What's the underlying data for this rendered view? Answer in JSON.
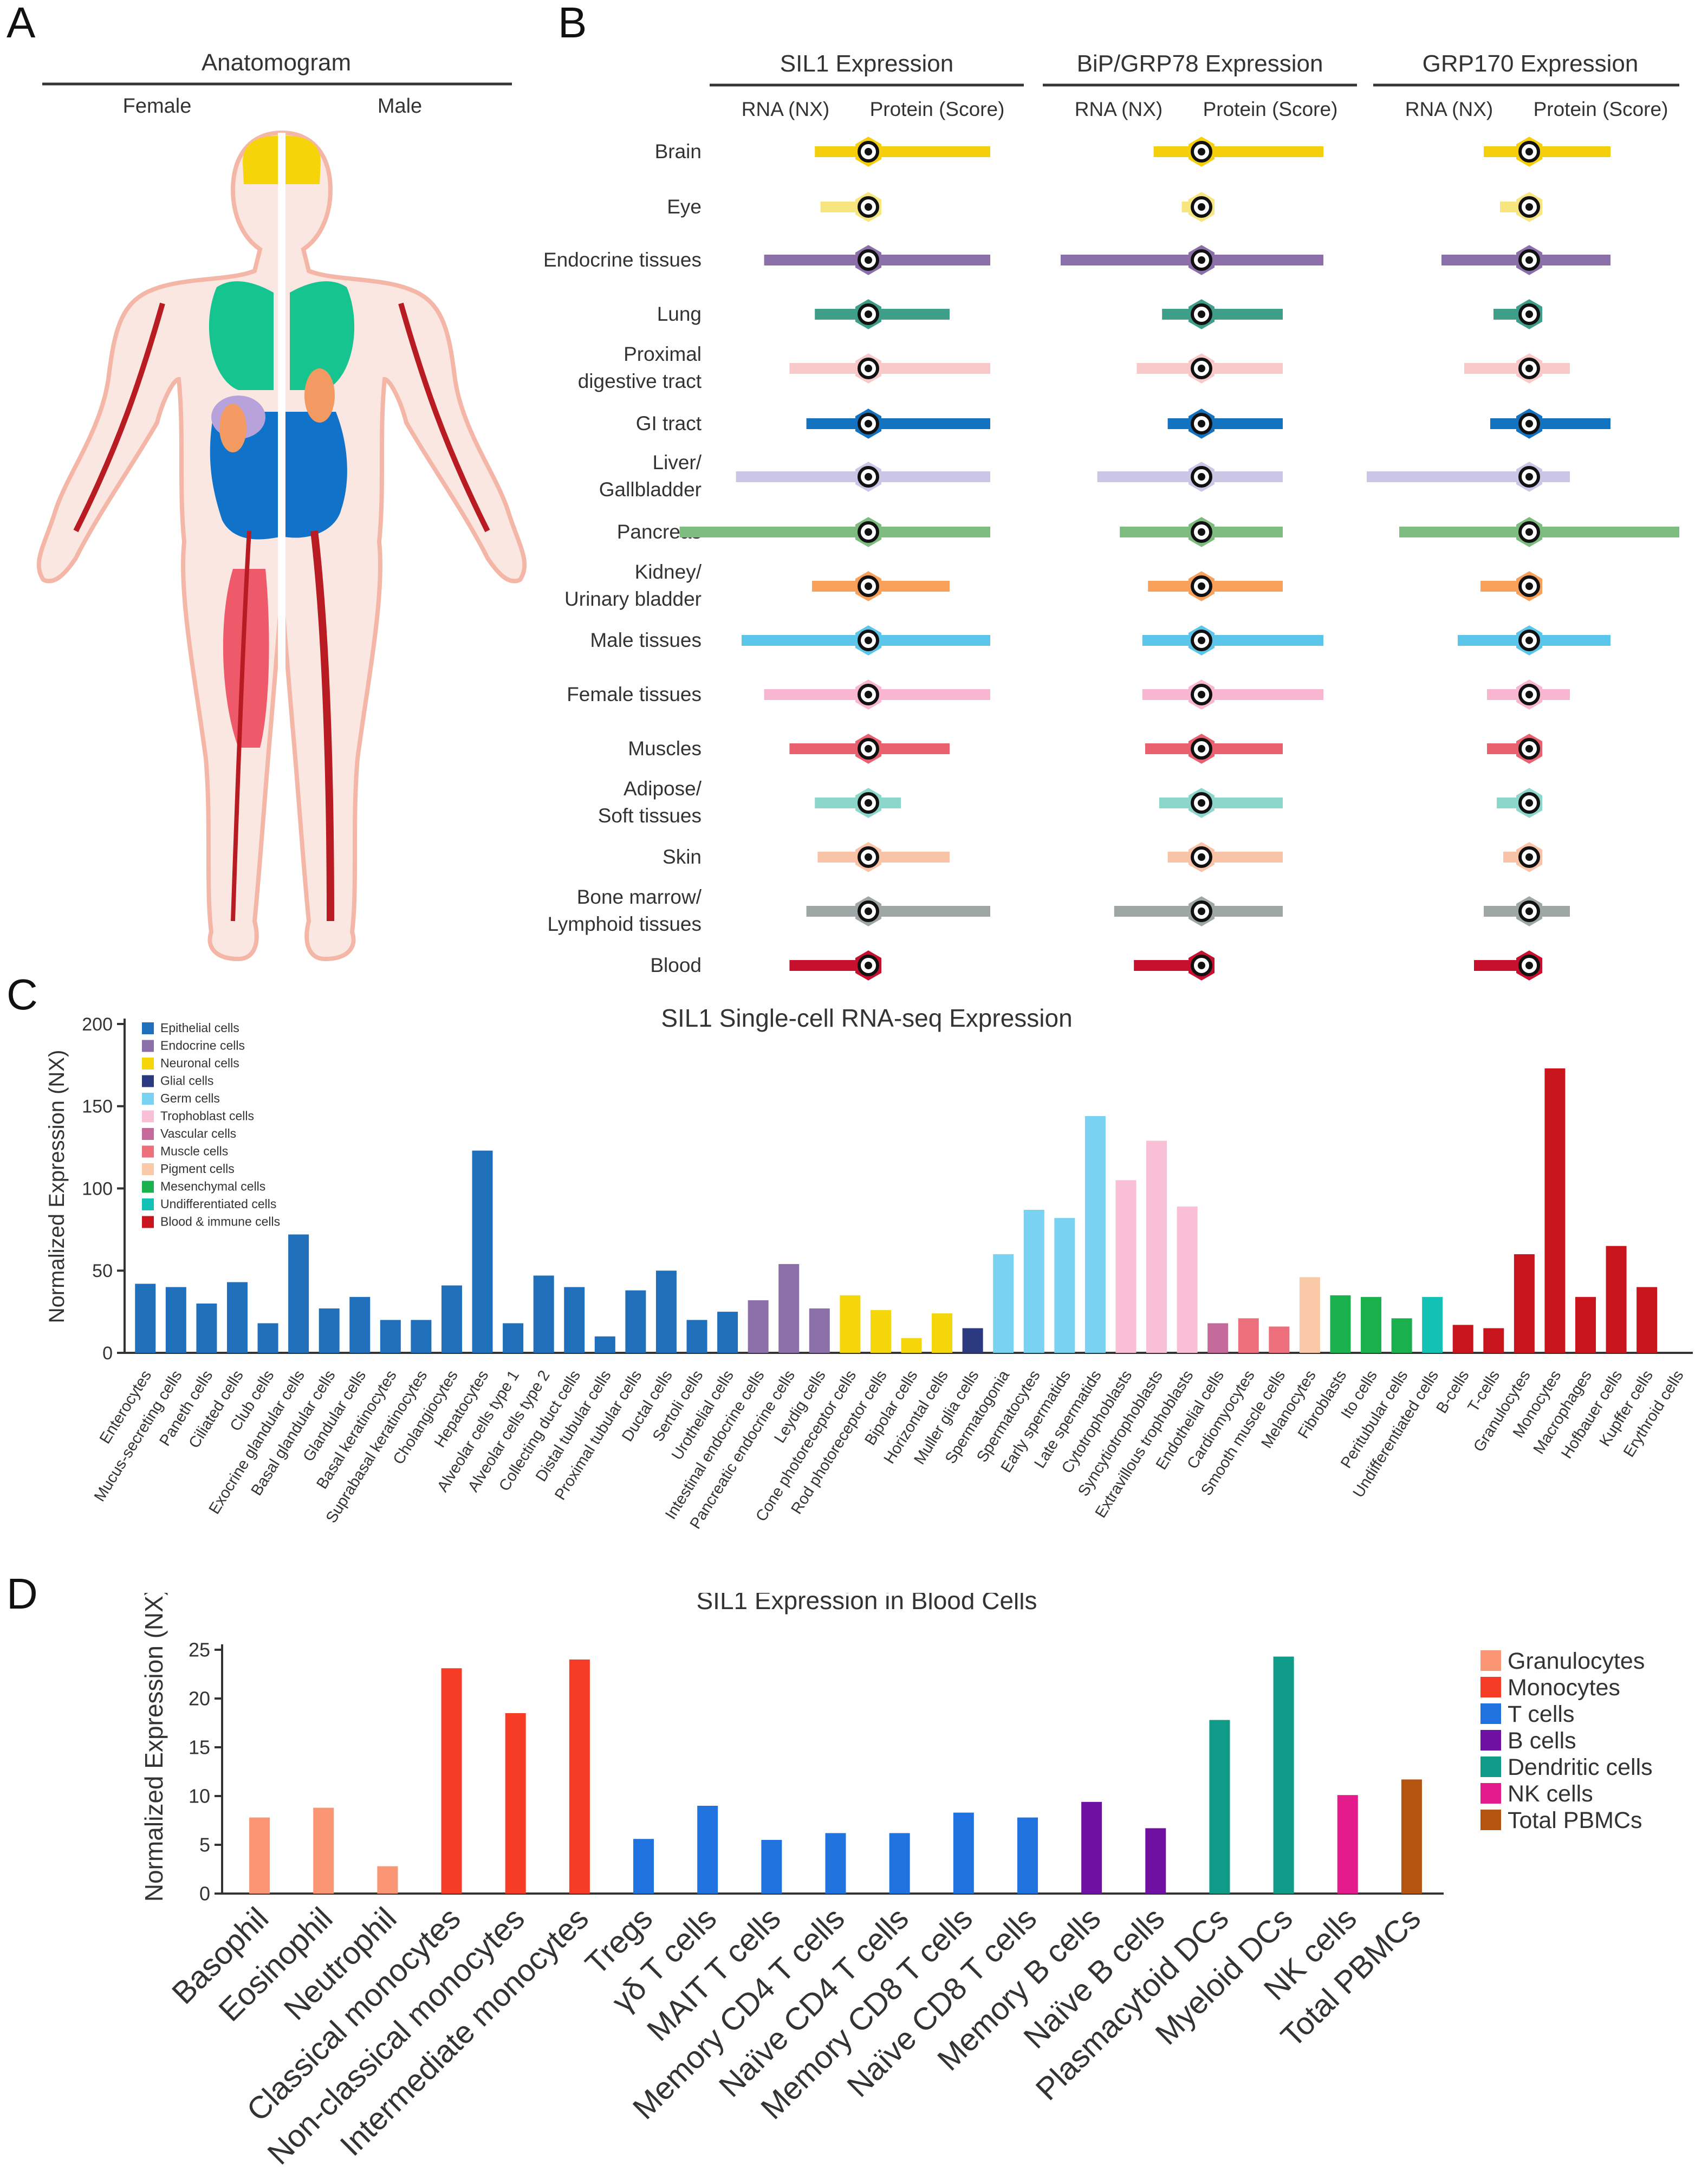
{
  "panels": {
    "a": "A",
    "b": "B",
    "c": "C",
    "d": "D"
  },
  "anatomogram": {
    "title": "Anatomogram",
    "female": "Female",
    "male": "Male"
  },
  "chart_data": [
    {
      "type": "table",
      "id": "tissue-expression",
      "groups": [
        {
          "title": "SIL1 Expression",
          "rna_label": "RNA (NX)",
          "protein_label": "Protein (Score)"
        },
        {
          "title": "BiP/GRP78 Expression",
          "rna_label": "RNA (NX)",
          "protein_label": "Protein (Score)"
        },
        {
          "title": "GRP170 Expression",
          "rna_label": "RNA (NX)",
          "protein_label": "Protein (Score)"
        }
      ],
      "tissues": [
        {
          "name": "Brain",
          "color": "#f5cf0b",
          "rna": [
            0.19,
            0.17,
            0.14
          ],
          "protein": [
            0.75,
            0.75,
            0.5
          ]
        },
        {
          "name": "Eye",
          "color": "#f7e680",
          "rna": [
            0.17,
            0.07,
            0.09
          ],
          "protein": [
            0.0,
            0.0,
            0.0
          ]
        },
        {
          "name": "Endocrine tissues",
          "color": "#8a6fa8",
          "rna": [
            0.37,
            0.5,
            0.27
          ],
          "protein": [
            0.75,
            0.75,
            0.5
          ]
        },
        {
          "name": "Lung",
          "color": "#3f9e8a",
          "rna": [
            0.19,
            0.14,
            0.11
          ],
          "protein": [
            0.5,
            0.5,
            0.0
          ]
        },
        {
          "name": "Proximal\ndigestive tract",
          "color": "#f9c8c8",
          "rna": [
            0.28,
            0.23,
            0.2
          ],
          "protein": [
            0.75,
            0.5,
            0.25
          ]
        },
        {
          "name": "GI tract",
          "color": "#1373c0",
          "rna": [
            0.22,
            0.12,
            0.12
          ],
          "protein": [
            0.75,
            0.5,
            0.5
          ]
        },
        {
          "name": "Liver/\nGallbladder",
          "color": "#cbc5e6",
          "rna": [
            0.47,
            0.37,
            0.5
          ],
          "protein": [
            0.75,
            0.5,
            0.25
          ]
        },
        {
          "name": "Pancreas",
          "color": "#7ebb7e",
          "rna": [
            0.67,
            0.29,
            0.4
          ],
          "protein": [
            0.75,
            0.5,
            1.0
          ]
        },
        {
          "name": "Kidney/\nUrinary bladder",
          "color": "#f9a15a",
          "rna": [
            0.2,
            0.19,
            0.15
          ],
          "protein": [
            0.5,
            0.5,
            0.0
          ]
        },
        {
          "name": "Male tissues",
          "color": "#5bc6ea",
          "rna": [
            0.45,
            0.21,
            0.22
          ],
          "protein": [
            0.75,
            0.75,
            0.5
          ]
        },
        {
          "name": "Female tissues",
          "color": "#f9b6d1",
          "rna": [
            0.37,
            0.21,
            0.13
          ],
          "protein": [
            0.75,
            0.75,
            0.25
          ]
        },
        {
          "name": "Muscles",
          "color": "#e9616f",
          "rna": [
            0.28,
            0.2,
            0.13
          ],
          "protein": [
            0.5,
            0.5,
            0.0
          ]
        },
        {
          "name": "Adipose/\nSoft tissues",
          "color": "#8dd6cb",
          "rna": [
            0.19,
            0.15,
            0.1
          ],
          "protein": [
            0.2,
            0.5,
            0.0
          ]
        },
        {
          "name": "Skin",
          "color": "#f9c3a8",
          "rna": [
            0.18,
            0.12,
            0.08
          ],
          "protein": [
            0.5,
            0.5,
            0.0
          ]
        },
        {
          "name": "Bone marrow/\nLymphoid tissues",
          "color": "#9ea6a6",
          "rna": [
            0.22,
            0.31,
            0.14
          ],
          "protein": [
            0.75,
            0.5,
            0.25
          ]
        },
        {
          "name": "Blood",
          "color": "#c8102e",
          "rna": [
            0.28,
            0.24,
            0.17
          ],
          "protein": [
            0.0,
            0.0,
            0.0
          ]
        }
      ]
    },
    {
      "type": "bar",
      "id": "single-cell",
      "title": "SIL1 Single-cell RNA-seq Expression",
      "ylabel": "Normalized Expression (NX)",
      "ylim": [
        0,
        200
      ],
      "yticks": [
        0,
        50,
        100,
        150,
        200
      ],
      "legend": [
        {
          "label": "Epithelial cells",
          "color": "#1f6fbb"
        },
        {
          "label": "Endocrine cells",
          "color": "#8a6fa8"
        },
        {
          "label": "Neuronal cells",
          "color": "#f5d60b"
        },
        {
          "label": "Glial cells",
          "color": "#2b3a80"
        },
        {
          "label": "Germ cells",
          "color": "#79d2f2"
        },
        {
          "label": "Trophoblast cells",
          "color": "#f9bfd6"
        },
        {
          "label": "Vascular cells",
          "color": "#c46a9a"
        },
        {
          "label": "Muscle cells",
          "color": "#ee6f7c"
        },
        {
          "label": "Pigment cells",
          "color": "#f9c9a8"
        },
        {
          "label": "Mesenchymal cells",
          "color": "#1bb04e"
        },
        {
          "label": "Undifferentiated cells",
          "color": "#14c1b5"
        },
        {
          "label": "Blood & immune cells",
          "color": "#c8141c"
        }
      ],
      "categories": [
        "Enterocytes",
        "Mucus-secreting cells",
        "Paneth cells",
        "Ciliated cells",
        "Club cells",
        "Exocrine glandular cells",
        "Basal glandular cells",
        "Glandular cells",
        "Basal keratinocytes",
        "Suprabasal keratinocytes",
        "Cholangiocytes",
        "Hepatocytes",
        "Alveolar cells type 1",
        "Alveolar cells type 2",
        "Collecting duct cells",
        "Distal tubular cells",
        "Proximal tubular cells",
        "Ductal cells",
        "Sertoli cells",
        "Urothelial cells",
        "Intestinal endocrine cells",
        "Pancreatic endocrine cells",
        "Leydig cells",
        "Cone photoreceptor cells",
        "Rod photoreceptor cells",
        "Bipolar cells",
        "Horizontal cells",
        "Muller glia cells",
        "Spermatogonia",
        "Spermatocytes",
        "Early spermatids",
        "Late spermatids",
        "Cytotrophoblasts",
        "Syncytiotrophoblasts",
        "Extravillous trophoblasts",
        "Endothelial cells",
        "Cardiomyocytes",
        "Smooth muscle cells",
        "Melanocytes",
        "Fibroblasts",
        "Ito cells",
        "Peritubular cells",
        "Undifferentiated cells",
        "B-cells",
        "T-cells",
        "Granulocytes",
        "Monocytes",
        "Macrophages",
        "Hofbauer cells",
        "Kupffer cells",
        "Erythroid cells"
      ],
      "values": [
        42,
        40,
        30,
        43,
        18,
        72,
        27,
        34,
        20,
        20,
        41,
        123,
        18,
        47,
        40,
        10,
        38,
        50,
        20,
        25,
        32,
        54,
        27,
        35,
        26,
        9,
        24,
        15,
        60,
        87,
        82,
        144,
        105,
        129,
        89,
        18,
        21,
        16,
        46,
        35,
        34,
        21,
        34,
        17,
        15,
        60,
        173,
        34,
        65,
        40,
        0
      ],
      "groups": [
        "Epithelial cells",
        "Epithelial cells",
        "Epithelial cells",
        "Epithelial cells",
        "Epithelial cells",
        "Epithelial cells",
        "Epithelial cells",
        "Epithelial cells",
        "Epithelial cells",
        "Epithelial cells",
        "Epithelial cells",
        "Epithelial cells",
        "Epithelial cells",
        "Epithelial cells",
        "Epithelial cells",
        "Epithelial cells",
        "Epithelial cells",
        "Epithelial cells",
        "Epithelial cells",
        "Epithelial cells",
        "Endocrine cells",
        "Endocrine cells",
        "Endocrine cells",
        "Neuronal cells",
        "Neuronal cells",
        "Neuronal cells",
        "Neuronal cells",
        "Glial cells",
        "Germ cells",
        "Germ cells",
        "Germ cells",
        "Germ cells",
        "Trophoblast cells",
        "Trophoblast cells",
        "Trophoblast cells",
        "Vascular cells",
        "Muscle cells",
        "Muscle cells",
        "Pigment cells",
        "Mesenchymal cells",
        "Mesenchymal cells",
        "Mesenchymal cells",
        "Undifferentiated cells",
        "Blood & immune cells",
        "Blood & immune cells",
        "Blood & immune cells",
        "Blood & immune cells",
        "Blood & immune cells",
        "Blood & immune cells",
        "Blood & immune cells",
        "Blood & immune cells"
      ]
    },
    {
      "type": "bar",
      "id": "blood-cells",
      "title": "SIL1 Expression in Blood Cells",
      "ylabel": "Normalized Expression (NX)",
      "ylim": [
        0,
        25
      ],
      "yticks": [
        0,
        5,
        10,
        15,
        20,
        25
      ],
      "legend": [
        {
          "label": "Granulocytes",
          "color": "#fa9673"
        },
        {
          "label": "Monocytes",
          "color": "#f63c25"
        },
        {
          "label": "T cells",
          "color": "#2073df"
        },
        {
          "label": "B cells",
          "color": "#6f10a2"
        },
        {
          "label": "Dendritic cells",
          "color": "#0f9b88"
        },
        {
          "label": "NK cells",
          "color": "#e41b8a"
        },
        {
          "label": "Total PBMCs",
          "color": "#b35410"
        }
      ],
      "categories": [
        "Basophil",
        "Eosinophil",
        "Neutrophil",
        "Classical monocytes",
        "Non-classical monocytes",
        "Intermediate monocytes",
        "Tregs",
        "γδ T cells",
        "MAIT T cells",
        "Memory CD4 T cells",
        "Naïve CD4 T cells",
        "Memory CD8 T cells",
        "Naïve CD8 T cells",
        "Memory B cells",
        "Naïve B cells",
        "Plasmacytoid DCs",
        "Myeloid DCs",
        "NK cells",
        "Total PBMCs"
      ],
      "values": [
        7.8,
        8.8,
        2.8,
        23.1,
        18.5,
        24.0,
        5.6,
        9.0,
        5.5,
        6.2,
        6.2,
        8.3,
        7.8,
        9.4,
        6.7,
        17.8,
        24.3,
        10.1,
        11.7
      ],
      "groups": [
        "Granulocytes",
        "Granulocytes",
        "Granulocytes",
        "Monocytes",
        "Monocytes",
        "Monocytes",
        "T cells",
        "T cells",
        "T cells",
        "T cells",
        "T cells",
        "T cells",
        "T cells",
        "B cells",
        "B cells",
        "Dendritic cells",
        "Dendritic cells",
        "NK cells",
        "Total PBMCs"
      ]
    }
  ]
}
